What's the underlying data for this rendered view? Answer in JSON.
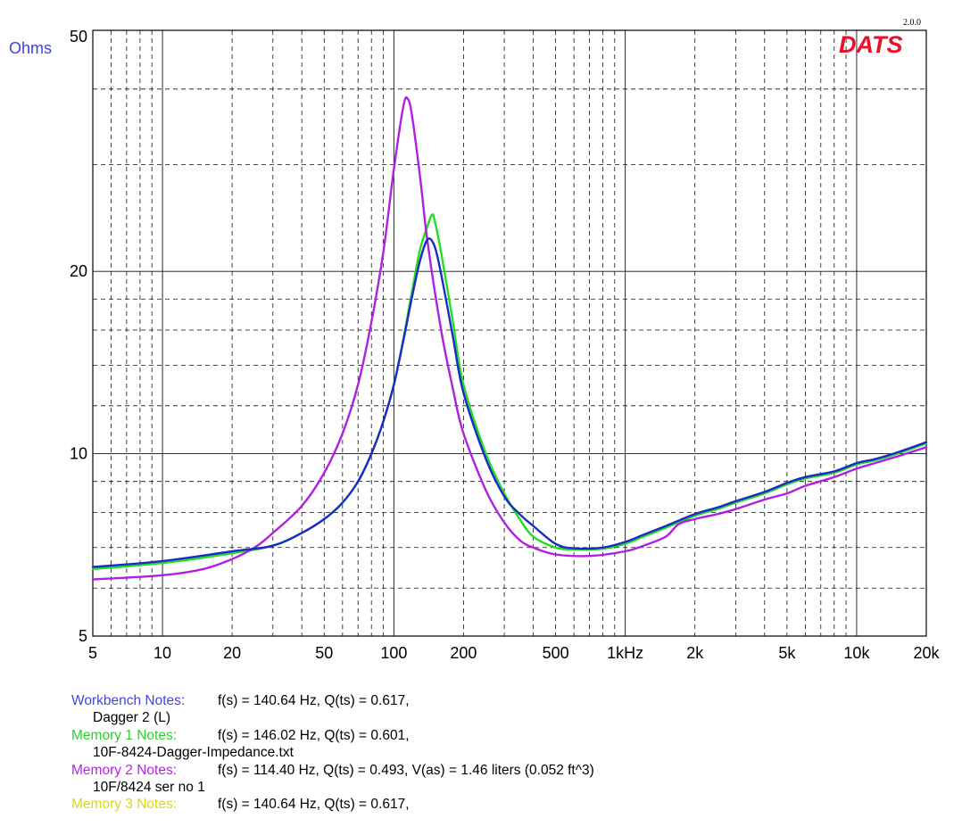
{
  "chart_data": {
    "type": "line",
    "title": "",
    "xlabel": "",
    "ylabel": "Ohms",
    "x_scale": "log",
    "y_scale": "log",
    "xlim": [
      5,
      20000
    ],
    "ylim": [
      5,
      50
    ],
    "grid": true,
    "brand": "DATS",
    "version": "2.0.0",
    "x_ticks": [
      {
        "value": 5,
        "label": "5"
      },
      {
        "value": 10,
        "label": "10"
      },
      {
        "value": 20,
        "label": "20"
      },
      {
        "value": 50,
        "label": "50"
      },
      {
        "value": 100,
        "label": "100"
      },
      {
        "value": 200,
        "label": "200"
      },
      {
        "value": 500,
        "label": "500"
      },
      {
        "value": 1000,
        "label": "1kHz"
      },
      {
        "value": 2000,
        "label": "2k"
      },
      {
        "value": 5000,
        "label": "5k"
      },
      {
        "value": 10000,
        "label": "10k"
      },
      {
        "value": 20000,
        "label": "20k"
      }
    ],
    "y_ticks": [
      {
        "value": 5,
        "label": "5"
      },
      {
        "value": 10,
        "label": "10"
      },
      {
        "value": 20,
        "label": "20"
      },
      {
        "value": 50,
        "label": "50"
      }
    ],
    "series": [
      {
        "name": "Memory 1 Notes",
        "color": "#22dd22",
        "points": [
          [
            5,
            6.45
          ],
          [
            10,
            6.6
          ],
          [
            20,
            6.85
          ],
          [
            30,
            7.05
          ],
          [
            40,
            7.4
          ],
          [
            50,
            7.8
          ],
          [
            60,
            8.3
          ],
          [
            70,
            9.0
          ],
          [
            80,
            10.0
          ],
          [
            90,
            11.3
          ],
          [
            100,
            13.0
          ],
          [
            110,
            15.5
          ],
          [
            120,
            18.6
          ],
          [
            130,
            21.8
          ],
          [
            140,
            23.8
          ],
          [
            146,
            24.8
          ],
          [
            150,
            24.3
          ],
          [
            160,
            21.5
          ],
          [
            180,
            16.5
          ],
          [
            200,
            13.0
          ],
          [
            250,
            10.0
          ],
          [
            300,
            8.6
          ],
          [
            350,
            7.8
          ],
          [
            400,
            7.3
          ],
          [
            500,
            7.0
          ],
          [
            600,
            6.95
          ],
          [
            800,
            6.97
          ],
          [
            1000,
            7.1
          ],
          [
            1200,
            7.3
          ],
          [
            1500,
            7.55
          ],
          [
            2000,
            7.9
          ],
          [
            2500,
            8.1
          ],
          [
            3000,
            8.3
          ],
          [
            4000,
            8.6
          ],
          [
            5000,
            8.9
          ],
          [
            6000,
            9.1
          ],
          [
            8000,
            9.3
          ],
          [
            10000,
            9.6
          ],
          [
            12000,
            9.75
          ],
          [
            15000,
            10.0
          ],
          [
            20000,
            10.4
          ]
        ]
      },
      {
        "name": "Memory 2 Notes",
        "color": "#b020e0",
        "points": [
          [
            5,
            6.2
          ],
          [
            10,
            6.3
          ],
          [
            15,
            6.45
          ],
          [
            20,
            6.7
          ],
          [
            25,
            7.0
          ],
          [
            30,
            7.4
          ],
          [
            40,
            8.2
          ],
          [
            50,
            9.3
          ],
          [
            60,
            10.8
          ],
          [
            70,
            13.0
          ],
          [
            80,
            16.5
          ],
          [
            90,
            21.5
          ],
          [
            100,
            29.5
          ],
          [
            110,
            37.5
          ],
          [
            115,
            38.5
          ],
          [
            120,
            36.0
          ],
          [
            130,
            28.5
          ],
          [
            140,
            22.3
          ],
          [
            160,
            16.0
          ],
          [
            180,
            12.8
          ],
          [
            200,
            10.8
          ],
          [
            250,
            8.7
          ],
          [
            300,
            7.7
          ],
          [
            350,
            7.2
          ],
          [
            400,
            7.0
          ],
          [
            500,
            6.82
          ],
          [
            700,
            6.78
          ],
          [
            1000,
            6.9
          ],
          [
            1200,
            7.05
          ],
          [
            1500,
            7.3
          ],
          [
            1700,
            7.65
          ],
          [
            2000,
            7.8
          ],
          [
            2500,
            7.95
          ],
          [
            3000,
            8.1
          ],
          [
            4000,
            8.4
          ],
          [
            5000,
            8.6
          ],
          [
            6000,
            8.85
          ],
          [
            8000,
            9.15
          ],
          [
            10000,
            9.45
          ],
          [
            12000,
            9.65
          ],
          [
            15000,
            9.9
          ],
          [
            20000,
            10.25
          ]
        ]
      },
      {
        "name": "Workbench Notes",
        "color": "#1a2bc8",
        "points": [
          [
            5,
            6.5
          ],
          [
            10,
            6.65
          ],
          [
            20,
            6.9
          ],
          [
            30,
            7.05
          ],
          [
            40,
            7.4
          ],
          [
            50,
            7.8
          ],
          [
            60,
            8.3
          ],
          [
            70,
            9.0
          ],
          [
            80,
            10.0
          ],
          [
            90,
            11.3
          ],
          [
            100,
            13.0
          ],
          [
            110,
            15.4
          ],
          [
            120,
            18.2
          ],
          [
            130,
            20.9
          ],
          [
            140,
            22.6
          ],
          [
            150,
            22.0
          ],
          [
            160,
            19.8
          ],
          [
            180,
            15.6
          ],
          [
            200,
            12.6
          ],
          [
            250,
            9.8
          ],
          [
            300,
            8.5
          ],
          [
            350,
            7.95
          ],
          [
            400,
            7.6
          ],
          [
            500,
            7.1
          ],
          [
            600,
            6.98
          ],
          [
            800,
            7.0
          ],
          [
            1000,
            7.15
          ],
          [
            1200,
            7.35
          ],
          [
            1500,
            7.6
          ],
          [
            2000,
            7.95
          ],
          [
            2500,
            8.15
          ],
          [
            3000,
            8.35
          ],
          [
            4000,
            8.65
          ],
          [
            5000,
            8.95
          ],
          [
            6000,
            9.15
          ],
          [
            8000,
            9.35
          ],
          [
            10000,
            9.65
          ],
          [
            12000,
            9.8
          ],
          [
            15000,
            10.05
          ],
          [
            20000,
            10.45
          ]
        ]
      }
    ]
  },
  "notes": [
    {
      "label": "Workbench Notes:",
      "color": "#4545e6",
      "params": "f(s) = 140.64 Hz, Q(ts) = 0.617,",
      "sub": "Dagger 2 (L)"
    },
    {
      "label": "Memory 1 Notes:",
      "color": "#2ad02a",
      "params": "f(s) = 146.02 Hz, Q(ts) = 0.601,",
      "sub": "10F-8424-Dagger-Impedance.txt"
    },
    {
      "label": "Memory 2 Notes:",
      "color": "#bb22e6",
      "params": "f(s) = 114.40 Hz, Q(ts) = 0.493, V(as) = 1.46 liters  (0.052 ft^3)",
      "sub": "10F/8424 ser no 1"
    },
    {
      "label": "Memory 3 Notes:",
      "color": "#d8d818",
      "params": "f(s) = 140.64 Hz, Q(ts) = 0.617,",
      "sub": ""
    }
  ]
}
